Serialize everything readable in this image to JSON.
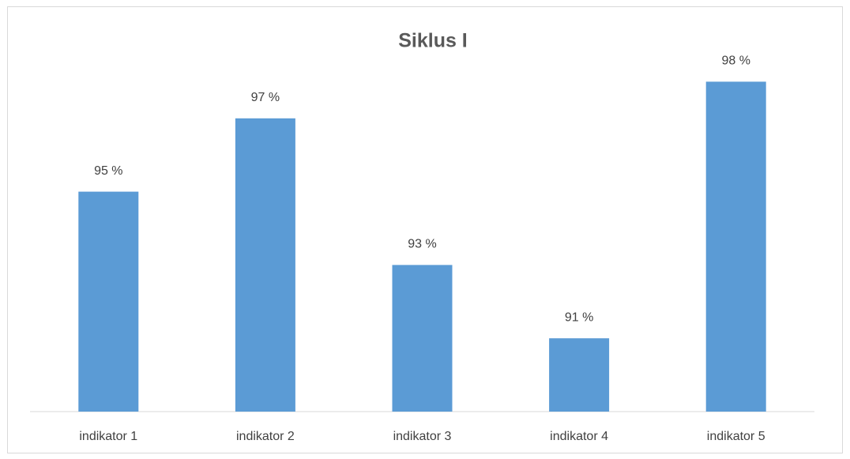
{
  "chart_data": {
    "type": "bar",
    "title": "Siklus I",
    "categories": [
      "indikator 1",
      "indikator 2",
      "indikator 3",
      "indikator 4",
      "indikator 5"
    ],
    "values": [
      95,
      97,
      93,
      91,
      98
    ],
    "value_labels": [
      "95 %",
      "97 %",
      "93 %",
      "91 %",
      "98 %"
    ],
    "color": "#5b9bd5",
    "ylim": [
      89,
      99
    ]
  }
}
